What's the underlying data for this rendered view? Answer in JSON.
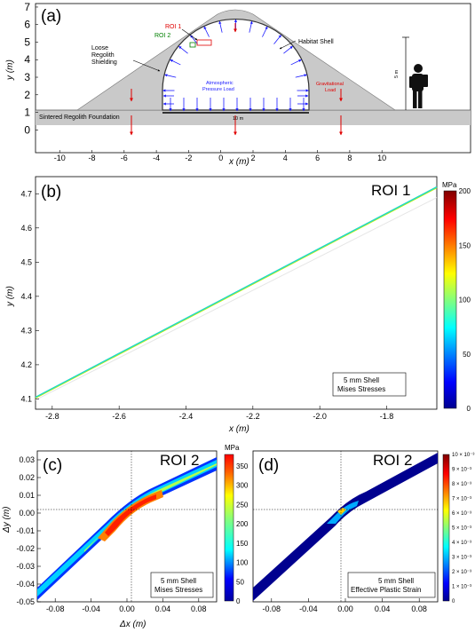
{
  "figure": {
    "panel_a": {
      "label": "(a)",
      "xlabel": "x (m)",
      "ylabel": "y (m)",
      "annotations": {
        "roi1": "ROI 1",
        "roi2": "ROI 2",
        "loose_line1": "Loose",
        "loose_line2": "Regolith",
        "loose_line3": "Shielding",
        "habitat": "Habitat Shell",
        "atm_line1": "Atmospheric",
        "atm_line2": "Pressure Load",
        "grav_line1": "Gravitational",
        "grav_line2": "Load",
        "foundation": "Sintered Regolith Foundation",
        "scale_10m": "10 m",
        "scale_5m": "5 m"
      },
      "colors": {
        "shielding": "#c9c9c9",
        "pressure_arrows": "#1a1aff",
        "gravity_arrows": "#e00000",
        "roi1": "#e00000",
        "roi2": "#008000"
      }
    },
    "panel_b": {
      "label": "(b)",
      "title": "ROI 1",
      "xlabel": "x (m)",
      "ylabel": "y (m)",
      "colorbar_unit": "MPa",
      "legend_line1": "5 mm Shell",
      "legend_line2": "Mises Stresses"
    },
    "panel_c": {
      "label": "(c)",
      "title": "ROI 2",
      "xlabel": "Δx (m)",
      "ylabel": "Δy (m)",
      "colorbar_unit": "MPa",
      "legend_line1": "5 mm Shell",
      "legend_line2": "Mises Stresses"
    },
    "panel_d": {
      "label": "(d)",
      "title": "ROI 2",
      "colorbar_unit": "10 × 10⁻³",
      "legend_line1": "5 mm Shell",
      "legend_line2": "Effective Plastic Strain"
    }
  },
  "chart_data": [
    {
      "type": "diagram",
      "panel": "a",
      "x_ticks": [
        "-10",
        "-8",
        "-6",
        "-4",
        "-2",
        "0",
        "2",
        "4",
        "6",
        "8",
        "10"
      ],
      "y_ticks": [
        "0",
        "1",
        "2",
        "3",
        "4",
        "5",
        "6",
        "7"
      ],
      "xlim": [
        -11.5,
        15.5
      ],
      "ylim": [
        -1.3,
        7.2
      ]
    },
    {
      "type": "line",
      "panel": "b",
      "x": [
        -2.85,
        -1.65
      ],
      "y": [
        4.105,
        4.72
      ],
      "x_ticks": [
        "-2.8",
        "-2.6",
        "-2.4",
        "-2.2",
        "-2.0",
        "-1.8"
      ],
      "y_ticks": [
        "4.1",
        "4.2",
        "4.3",
        "4.4",
        "4.5",
        "4.6",
        "4.7"
      ],
      "xlim": [
        -2.85,
        -1.65
      ],
      "ylim": [
        4.07,
        4.75
      ],
      "colorbar_ticks": [
        "0",
        "50",
        "100",
        "150",
        "200"
      ],
      "colorbar_range": [
        0,
        200
      ]
    },
    {
      "type": "line",
      "panel": "c",
      "x_ticks": [
        "-0.08",
        "-0.04",
        "0.00",
        "0.04",
        "0.08"
      ],
      "y_ticks": [
        "0.03",
        "0.02",
        "0.01",
        "0.00",
        "-0.01",
        "-0.02",
        "-0.03",
        "-0.04",
        "-0.05"
      ],
      "xlim": [
        -0.1,
        0.1
      ],
      "ylim": [
        -0.05,
        0.035
      ],
      "colorbar_ticks": [
        "0",
        "50",
        "100",
        "150",
        "200",
        "250",
        "300",
        "350"
      ],
      "colorbar_range": [
        0,
        380
      ]
    },
    {
      "type": "line",
      "panel": "d",
      "x_ticks": [
        "-0.08",
        "-0.04",
        "0.00",
        "0.04",
        "0.08"
      ],
      "xlim": [
        -0.1,
        0.1
      ],
      "ylim": [
        -0.05,
        0.035
      ],
      "colorbar_ticks": [
        "0",
        "1 × 10⁻³",
        "2 × 10⁻³",
        "3 × 10⁻³",
        "4 × 10⁻³",
        "5 × 10⁻³",
        "6 × 10⁻³",
        "7 × 10⁻³",
        "8 × 10⁻³",
        "9 × 10⁻³",
        "10 × 10⁻³"
      ],
      "colorbar_range": [
        0,
        0.01
      ]
    }
  ]
}
